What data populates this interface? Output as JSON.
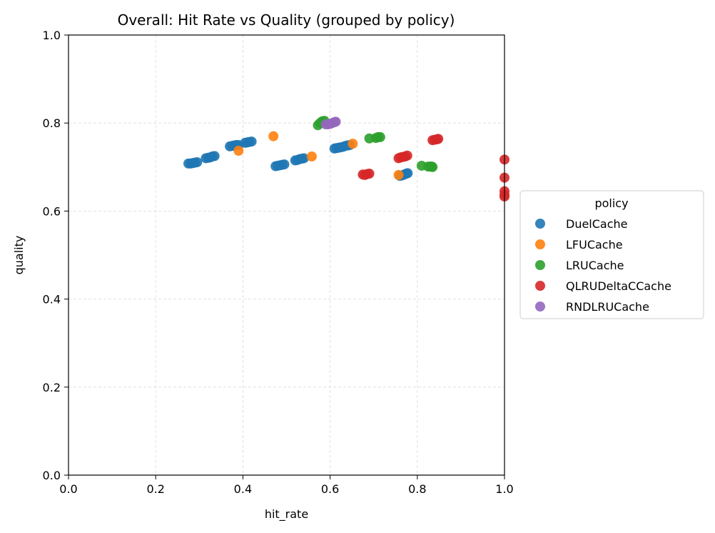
{
  "chart_data": {
    "type": "scatter",
    "title": "Overall: Hit Rate vs Quality (grouped by policy)",
    "xlabel": "hit_rate",
    "ylabel": "quality",
    "xlim": [
      0,
      1
    ],
    "ylim": [
      0,
      1
    ],
    "xticks": [
      "0.0",
      "0.2",
      "0.4",
      "0.6",
      "0.8",
      "1.0"
    ],
    "yticks": [
      "0.0",
      "0.2",
      "0.4",
      "0.6",
      "0.8",
      "1.0"
    ],
    "grid": true,
    "legend": {
      "title": "policy",
      "placement": "outside-right"
    },
    "series": [
      {
        "name": "DuelCache",
        "color": "#1f77b4",
        "points": [
          [
            0.275,
            0.708
          ],
          [
            0.28,
            0.708
          ],
          [
            0.285,
            0.709
          ],
          [
            0.29,
            0.71
          ],
          [
            0.295,
            0.711
          ],
          [
            0.315,
            0.72
          ],
          [
            0.32,
            0.721
          ],
          [
            0.325,
            0.722
          ],
          [
            0.33,
            0.724
          ],
          [
            0.335,
            0.725
          ],
          [
            0.37,
            0.747
          ],
          [
            0.375,
            0.748
          ],
          [
            0.38,
            0.749
          ],
          [
            0.385,
            0.75
          ],
          [
            0.39,
            0.75
          ],
          [
            0.405,
            0.755
          ],
          [
            0.41,
            0.756
          ],
          [
            0.415,
            0.757
          ],
          [
            0.42,
            0.758
          ],
          [
            0.475,
            0.702
          ],
          [
            0.48,
            0.703
          ],
          [
            0.485,
            0.704
          ],
          [
            0.49,
            0.705
          ],
          [
            0.495,
            0.706
          ],
          [
            0.52,
            0.715
          ],
          [
            0.525,
            0.716
          ],
          [
            0.53,
            0.718
          ],
          [
            0.535,
            0.719
          ],
          [
            0.54,
            0.72
          ],
          [
            0.61,
            0.742
          ],
          [
            0.615,
            0.743
          ],
          [
            0.62,
            0.744
          ],
          [
            0.625,
            0.745
          ],
          [
            0.63,
            0.746
          ],
          [
            0.635,
            0.748
          ],
          [
            0.64,
            0.749
          ],
          [
            0.645,
            0.75
          ],
          [
            0.76,
            0.68
          ],
          [
            0.765,
            0.681
          ],
          [
            0.77,
            0.683
          ],
          [
            0.775,
            0.685
          ],
          [
            0.778,
            0.686
          ]
        ]
      },
      {
        "name": "LFUCache",
        "color": "#ff7f0e",
        "points": [
          [
            0.39,
            0.737
          ],
          [
            0.47,
            0.77
          ],
          [
            0.558,
            0.724
          ],
          [
            0.652,
            0.753
          ],
          [
            0.757,
            0.682
          ]
        ]
      },
      {
        "name": "LRUCache",
        "color": "#2ca02c",
        "points": [
          [
            0.572,
            0.795
          ],
          [
            0.577,
            0.8
          ],
          [
            0.582,
            0.804
          ],
          [
            0.587,
            0.805
          ],
          [
            0.69,
            0.765
          ],
          [
            0.705,
            0.766
          ],
          [
            0.71,
            0.768
          ],
          [
            0.715,
            0.768
          ],
          [
            0.81,
            0.703
          ],
          [
            0.825,
            0.701
          ],
          [
            0.83,
            0.701
          ],
          [
            0.833,
            0.701
          ],
          [
            0.835,
            0.7
          ]
        ]
      },
      {
        "name": "QLRUDeltaCCache",
        "color": "#d62728",
        "points": [
          [
            0.675,
            0.683
          ],
          [
            0.68,
            0.682
          ],
          [
            0.685,
            0.684
          ],
          [
            0.69,
            0.685
          ],
          [
            0.757,
            0.72
          ],
          [
            0.762,
            0.722
          ],
          [
            0.767,
            0.723
          ],
          [
            0.772,
            0.724
          ],
          [
            0.777,
            0.726
          ],
          [
            0.835,
            0.761
          ],
          [
            0.84,
            0.762
          ],
          [
            0.845,
            0.763
          ],
          [
            0.848,
            0.764
          ],
          [
            1.0,
            0.717
          ],
          [
            1.0,
            0.676
          ],
          [
            1.0,
            0.645
          ],
          [
            1.0,
            0.637
          ],
          [
            1.0,
            0.633
          ]
        ]
      },
      {
        "name": "RNDLRUCache",
        "color": "#9467bd",
        "points": [
          [
            0.59,
            0.797
          ],
          [
            0.595,
            0.797
          ],
          [
            0.6,
            0.798
          ],
          [
            0.605,
            0.8
          ],
          [
            0.61,
            0.802
          ],
          [
            0.613,
            0.803
          ]
        ]
      }
    ]
  }
}
